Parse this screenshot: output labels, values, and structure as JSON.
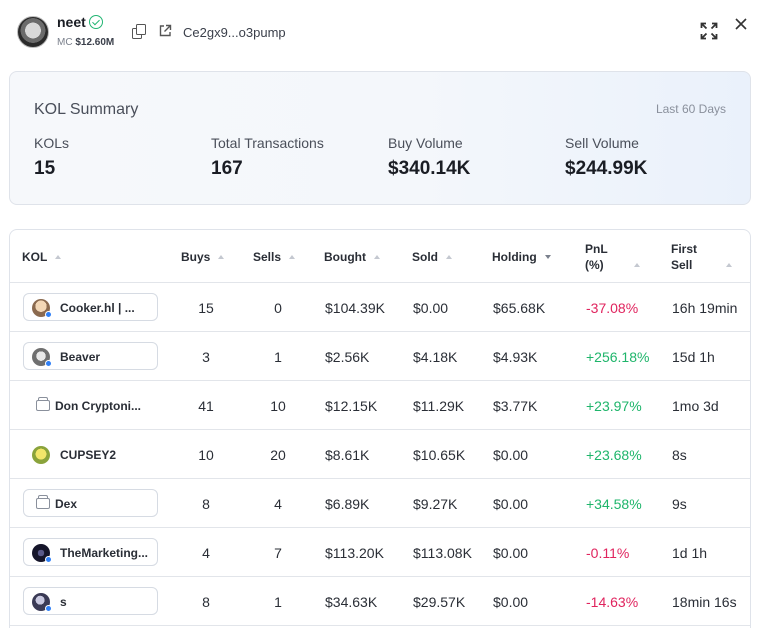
{
  "token": {
    "name": "neet",
    "mc_label": "MC",
    "mc_value": "$12.60M",
    "address": "Ce2gx9...o3pump"
  },
  "summary": {
    "title": "KOL Summary",
    "period": "Last 60 Days",
    "stats": [
      {
        "label": "KOLs",
        "value": "15"
      },
      {
        "label": "Total Transactions",
        "value": "167"
      },
      {
        "label": "Buy Volume",
        "value": "$340.14K"
      },
      {
        "label": "Sell Volume",
        "value": "$244.99K"
      }
    ]
  },
  "table": {
    "headers": {
      "kol": "KOL",
      "buys": "Buys",
      "sells": "Sells",
      "bought": "Bought",
      "sold": "Sold",
      "holding": "Holding",
      "pnl_1": "PnL",
      "pnl_2": "(%)",
      "first_sell_1": "First",
      "first_sell_2": "Sell"
    },
    "rows": [
      {
        "name": "Cooker.hl | ...",
        "buys": "15",
        "sells": "0",
        "bought": "$104.39K",
        "sold": "$0.00",
        "holding": "$65.68K",
        "pnl": "-37.08%",
        "first_sell": "16h 19min"
      },
      {
        "name": "Beaver",
        "buys": "3",
        "sells": "1",
        "bought": "$2.56K",
        "sold": "$4.18K",
        "holding": "$4.93K",
        "pnl": "+256.18%",
        "first_sell": "15d 1h"
      },
      {
        "name": "Don Cryptoni...",
        "buys": "41",
        "sells": "10",
        "bought": "$12.15K",
        "sold": "$11.29K",
        "holding": "$3.77K",
        "pnl": "+23.97%",
        "first_sell": "1mo 3d"
      },
      {
        "name": "CUPSEY2",
        "buys": "10",
        "sells": "20",
        "bought": "$8.61K",
        "sold": "$10.65K",
        "holding": "$0.00",
        "pnl": "+23.68%",
        "first_sell": "8s"
      },
      {
        "name": "Dex",
        "buys": "8",
        "sells": "4",
        "bought": "$6.89K",
        "sold": "$9.27K",
        "holding": "$0.00",
        "pnl": "+34.58%",
        "first_sell": "9s"
      },
      {
        "name": "TheMarketing...",
        "buys": "4",
        "sells": "7",
        "bought": "$113.20K",
        "sold": "$113.08K",
        "holding": "$0.00",
        "pnl": "-0.11%",
        "first_sell": "1d 1h"
      },
      {
        "name": "s",
        "buys": "8",
        "sells": "1",
        "bought": "$34.63K",
        "sold": "$29.57K",
        "holding": "$0.00",
        "pnl": "-14.63%",
        "first_sell": "18min 16s"
      }
    ]
  },
  "colors": {
    "positive": "#1fb56b",
    "negative": "#e0245e",
    "accent": "#2f7ff5"
  }
}
